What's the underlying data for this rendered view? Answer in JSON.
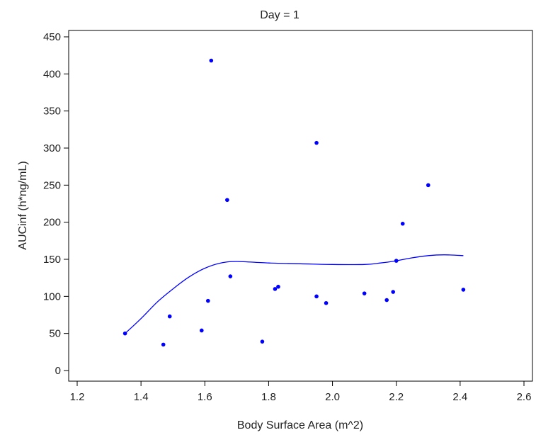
{
  "chart_data": {
    "type": "scatter",
    "title": "Day  =  1",
    "xlabel": "Body Surface Area (m^2)",
    "ylabel": "AUCinf (h*ng/mL)",
    "xlim": [
      1.2,
      2.6
    ],
    "ylim": [
      0,
      450
    ],
    "x_ticks": [
      "1.2",
      "1.4",
      "1.6",
      "1.8",
      "2.0",
      "2.2",
      "2.4",
      "2.6"
    ],
    "y_ticks": [
      "0",
      "50",
      "100",
      "150",
      "200",
      "250",
      "300",
      "350",
      "400",
      "450"
    ],
    "grid": false,
    "legend": "none",
    "color": "#0000ff",
    "points": [
      {
        "x": 1.35,
        "y": 50
      },
      {
        "x": 1.47,
        "y": 35
      },
      {
        "x": 1.49,
        "y": 73
      },
      {
        "x": 1.59,
        "y": 54
      },
      {
        "x": 1.61,
        "y": 94
      },
      {
        "x": 1.62,
        "y": 418
      },
      {
        "x": 1.67,
        "y": 230
      },
      {
        "x": 1.68,
        "y": 127
      },
      {
        "x": 1.78,
        "y": 39
      },
      {
        "x": 1.82,
        "y": 110
      },
      {
        "x": 1.83,
        "y": 113
      },
      {
        "x": 1.95,
        "y": 307
      },
      {
        "x": 1.95,
        "y": 100
      },
      {
        "x": 1.98,
        "y": 91
      },
      {
        "x": 2.1,
        "y": 104
      },
      {
        "x": 2.17,
        "y": 95
      },
      {
        "x": 2.19,
        "y": 106
      },
      {
        "x": 2.2,
        "y": 148
      },
      {
        "x": 2.22,
        "y": 198
      },
      {
        "x": 2.3,
        "y": 250
      },
      {
        "x": 2.41,
        "y": 109
      }
    ],
    "smooth_line": [
      {
        "x": 1.35,
        "y": 50
      },
      {
        "x": 1.4,
        "y": 70
      },
      {
        "x": 1.45,
        "y": 92
      },
      {
        "x": 1.5,
        "y": 110
      },
      {
        "x": 1.55,
        "y": 126
      },
      {
        "x": 1.6,
        "y": 138
      },
      {
        "x": 1.65,
        "y": 145
      },
      {
        "x": 1.7,
        "y": 147
      },
      {
        "x": 1.8,
        "y": 145
      },
      {
        "x": 1.9,
        "y": 144
      },
      {
        "x": 2.0,
        "y": 143
      },
      {
        "x": 2.1,
        "y": 143
      },
      {
        "x": 2.15,
        "y": 145
      },
      {
        "x": 2.2,
        "y": 148
      },
      {
        "x": 2.25,
        "y": 152
      },
      {
        "x": 2.3,
        "y": 155
      },
      {
        "x": 2.35,
        "y": 156
      },
      {
        "x": 2.41,
        "y": 155
      }
    ]
  }
}
